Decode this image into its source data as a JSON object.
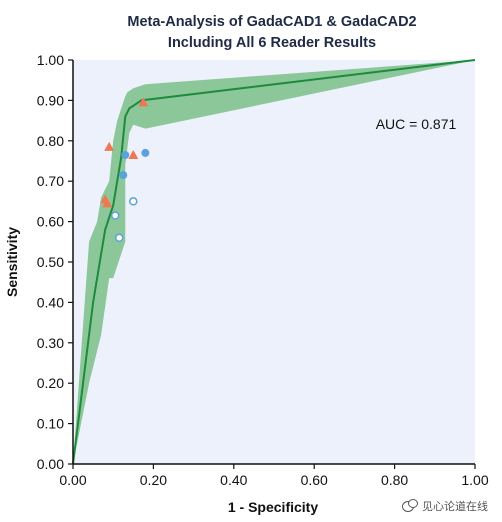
{
  "chart_data": {
    "type": "line",
    "title_line1": "Meta-Analysis of GadaCAD1 & GadaCAD2",
    "title_line2": "Including All 6 Reader Results",
    "xlabel": "1 - Specificity",
    "ylabel": "Sensitivity",
    "xlim": [
      0,
      1
    ],
    "ylim": [
      0,
      1
    ],
    "x_ticks": [
      "0.00",
      "0.20",
      "0.40",
      "0.60",
      "0.80",
      "1.00"
    ],
    "y_ticks": [
      "0.00",
      "0.10",
      "0.20",
      "0.30",
      "0.40",
      "0.50",
      "0.60",
      "0.70",
      "0.80",
      "0.90",
      "1.00"
    ],
    "grid": false,
    "annotation": "AUC = 0.871",
    "colors": {
      "plot_background": "#ecf1fb",
      "curve": "#1e8a3c",
      "band": "#8cc79a",
      "triangle": "#f07850",
      "circle": "#5aa2dc"
    },
    "curve": {
      "x": [
        0.0,
        0.05,
        0.08,
        0.1,
        0.12,
        0.13,
        0.14,
        0.17,
        1.0
      ],
      "y": [
        0.0,
        0.4,
        0.58,
        0.64,
        0.76,
        0.86,
        0.88,
        0.9,
        1.0
      ]
    },
    "band_upper": {
      "x": [
        0.0,
        0.04,
        0.06,
        0.07,
        0.09,
        0.1,
        0.11,
        0.13,
        0.135,
        0.15,
        0.18,
        1.0
      ],
      "y": [
        0.0,
        0.55,
        0.6,
        0.66,
        0.7,
        0.8,
        0.85,
        0.91,
        0.92,
        0.93,
        0.94,
        1.0
      ]
    },
    "band_lower": {
      "x": [
        1.0,
        0.18,
        0.15,
        0.14,
        0.13,
        0.13,
        0.12,
        0.1,
        0.09,
        0.07,
        0.04,
        0.0
      ],
      "y": [
        1.0,
        0.83,
        0.84,
        0.82,
        0.74,
        0.55,
        0.52,
        0.46,
        0.46,
        0.32,
        0.2,
        0.0
      ]
    },
    "series": [
      {
        "marker": "triangle",
        "x": [
          0.09,
          0.08,
          0.085,
          0.15,
          0.175
        ],
        "y": [
          0.785,
          0.655,
          0.645,
          0.765,
          0.895
        ]
      },
      {
        "marker": "circle",
        "x": [
          0.13,
          0.125,
          0.18
        ],
        "y": [
          0.765,
          0.715,
          0.77
        ]
      },
      {
        "marker": "open-circle",
        "x": [
          0.105,
          0.115,
          0.15
        ],
        "y": [
          0.615,
          0.56,
          0.65
        ]
      }
    ]
  },
  "watermark": {
    "icon": "chat-bubbles-icon",
    "text": "见心论道在线"
  }
}
